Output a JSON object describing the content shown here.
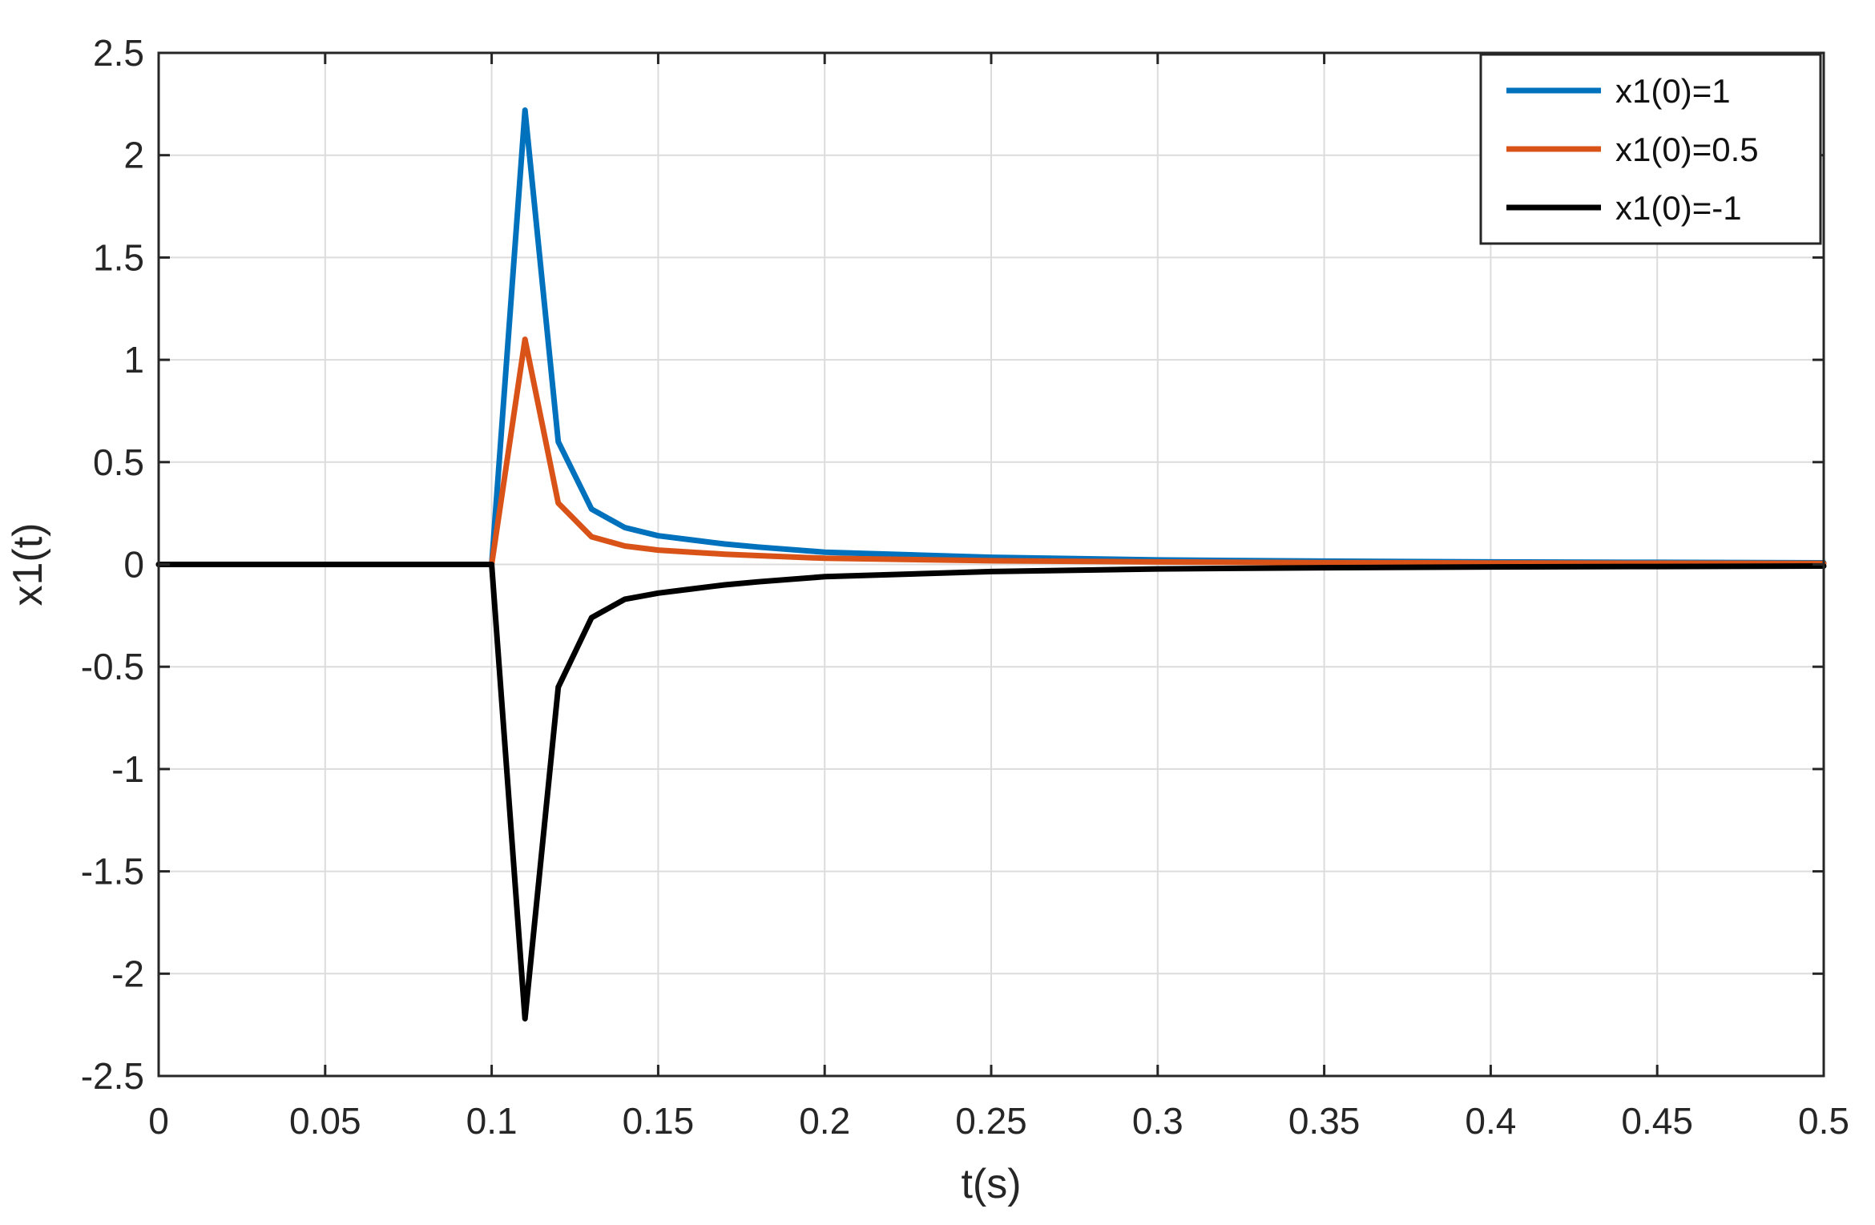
{
  "chart_data": {
    "type": "line",
    "title": "",
    "xlabel": "t(s)",
    "ylabel": "x1(t)",
    "xlim": [
      0,
      0.5
    ],
    "ylim": [
      -2.5,
      2.5
    ],
    "xticks": [
      0,
      0.05,
      0.1,
      0.15,
      0.2,
      0.25,
      0.3,
      0.35,
      0.4,
      0.45,
      0.5
    ],
    "yticks": [
      -2.5,
      -2,
      -1.5,
      -1,
      -0.5,
      0,
      0.5,
      1,
      1.5,
      2,
      2.5
    ],
    "xtick_labels": [
      "0",
      "0.05",
      "0.1",
      "0.15",
      "0.2",
      "0.25",
      "0.3",
      "0.35",
      "0.4",
      "0.45",
      "0.5"
    ],
    "ytick_labels": [
      "-2.5",
      "-2",
      "-1.5",
      "-1",
      "-0.5",
      "0",
      "0.5",
      "1",
      "1.5",
      "2",
      "2.5"
    ],
    "grid": true,
    "legend_position": "top-right",
    "x": [
      0,
      0.1,
      0.11,
      0.12,
      0.13,
      0.14,
      0.15,
      0.16,
      0.17,
      0.18,
      0.2,
      0.25,
      0.3,
      0.35,
      0.4,
      0.45,
      0.5
    ],
    "series": [
      {
        "name": "x1(0)=1",
        "color": "#0072BD",
        "values": [
          0,
          0,
          2.22,
          0.6,
          0.27,
          0.18,
          0.14,
          0.12,
          0.1,
          0.085,
          0.06,
          0.035,
          0.022,
          0.016,
          0.012,
          0.01,
          0.008
        ]
      },
      {
        "name": "x1(0)=0.5",
        "color": "#D95319",
        "values": [
          0,
          0,
          1.1,
          0.3,
          0.135,
          0.09,
          0.07,
          0.06,
          0.05,
          0.043,
          0.03,
          0.018,
          0.012,
          0.009,
          0.007,
          0.006,
          0.005
        ]
      },
      {
        "name": "x1(0)=-1",
        "color": "#000000",
        "values": [
          0,
          0,
          -2.22,
          -0.6,
          -0.26,
          -0.17,
          -0.14,
          -0.12,
          -0.1,
          -0.085,
          -0.06,
          -0.035,
          -0.022,
          -0.016,
          -0.012,
          -0.01,
          -0.008
        ]
      }
    ]
  }
}
